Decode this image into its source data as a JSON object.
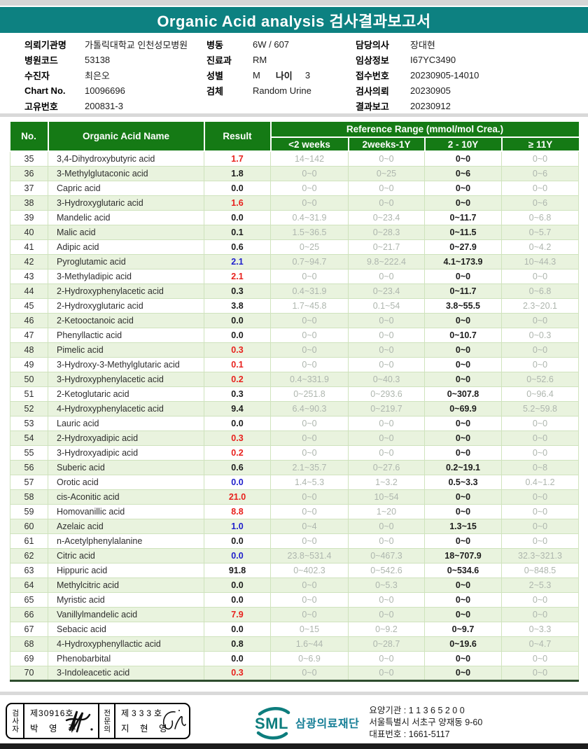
{
  "title": "Organic Acid analysis 검사결과보고서",
  "colors": {
    "banner_teal": "#0d8181",
    "table_header_green": "#157a15",
    "row_alt_green": "#e9f3de",
    "result_red": "#e8211d",
    "result_blue": "#2020cc",
    "range_gray": "#aeb6ae",
    "logo_teal": "#0d7d7d"
  },
  "info": {
    "left": [
      {
        "label": "의뢰기관명",
        "value": "가톨릭대학교 인천성모병원"
      },
      {
        "label": "병원코드",
        "value": "53138"
      },
      {
        "label": "수진자",
        "value": "최은오"
      },
      {
        "label": "Chart No.",
        "value": "10096696"
      },
      {
        "label": "고유번호",
        "value": "200831-3"
      }
    ],
    "middle": [
      {
        "label": "병동",
        "value": "6W / 607"
      },
      {
        "label": "진료과",
        "value": "RM"
      },
      {
        "label": "성별",
        "value": "M",
        "label2": "나이",
        "value2": "3"
      },
      {
        "label": "검체",
        "value": "Random Urine"
      }
    ],
    "right": [
      {
        "label": "담당의사",
        "value": "장대현"
      },
      {
        "label": "임상정보",
        "value": "I67YC3490"
      },
      {
        "label": "접수번호",
        "value": "20230905-14010"
      },
      {
        "label": "검사의뢰",
        "value": "20230905"
      },
      {
        "label": "결과보고",
        "value": "20230912"
      }
    ]
  },
  "table": {
    "col_no": "No.",
    "col_name": "Organic Acid Name",
    "col_result": "Result",
    "ref_title": "Reference Range (mmol/mol Crea.)",
    "ref_cols": [
      "<2 weeks",
      "2weeks-1Y",
      "2 - 10Y",
      "≥ 11Y"
    ],
    "rows": [
      {
        "no": "35",
        "name": "3,4-Dihydroxybutyric acid",
        "result": "1.7",
        "color": "red",
        "ranges": [
          "14~142",
          "0~0",
          "0~0",
          "0~0"
        ]
      },
      {
        "no": "36",
        "name": "3-Methylglutaconic acid",
        "result": "1.8",
        "color": "black",
        "ranges": [
          "0~0",
          "0~25",
          "0~6",
          "0~6"
        ]
      },
      {
        "no": "37",
        "name": "Capric acid",
        "result": "0.0",
        "color": "black",
        "ranges": [
          "0~0",
          "0~0",
          "0~0",
          "0~0"
        ]
      },
      {
        "no": "38",
        "name": "3-Hydroxyglutaric acid",
        "result": "1.6",
        "color": "red",
        "ranges": [
          "0~0",
          "0~0",
          "0~0",
          "0~6"
        ]
      },
      {
        "no": "39",
        "name": "Mandelic acid",
        "result": "0.0",
        "color": "black",
        "ranges": [
          "0.4~31.9",
          "0~23.4",
          "0~11.7",
          "0~6.8"
        ]
      },
      {
        "no": "40",
        "name": "Malic acid",
        "result": "0.1",
        "color": "black",
        "ranges": [
          "1.5~36.5",
          "0~28.3",
          "0~11.5",
          "0~5.7"
        ]
      },
      {
        "no": "41",
        "name": "Adipic acid",
        "result": "0.6",
        "color": "black",
        "ranges": [
          "0~25",
          "0~21.7",
          "0~27.9",
          "0~4.2"
        ]
      },
      {
        "no": "42",
        "name": "Pyroglutamic acid",
        "result": "2.1",
        "color": "blue",
        "ranges": [
          "0.7~94.7",
          "9.8~222.4",
          "4.1~173.9",
          "10~44.3"
        ]
      },
      {
        "no": "43",
        "name": "3-Methyladipic acid",
        "result": "2.1",
        "color": "red",
        "ranges": [
          "0~0",
          "0~0",
          "0~0",
          "0~0"
        ]
      },
      {
        "no": "44",
        "name": "2-Hydroxyphenylacetic acid",
        "result": "0.3",
        "color": "black",
        "ranges": [
          "0.4~31.9",
          "0~23.4",
          "0~11.7",
          "0~6.8"
        ]
      },
      {
        "no": "45",
        "name": "2-Hydroxyglutaric acid",
        "result": "3.8",
        "color": "black",
        "ranges": [
          "1.7~45.8",
          "0.1~54",
          "3.8~55.5",
          "2.3~20.1"
        ]
      },
      {
        "no": "46",
        "name": "2-Ketooctanoic acid",
        "result": "0.0",
        "color": "black",
        "ranges": [
          "0~0",
          "0~0",
          "0~0",
          "0~0"
        ]
      },
      {
        "no": "47",
        "name": "Phenyllactic acid",
        "result": "0.0",
        "color": "black",
        "ranges": [
          "0~0",
          "0~0",
          "0~10.7",
          "0~0.3"
        ]
      },
      {
        "no": "48",
        "name": "Pimelic acid",
        "result": "0.3",
        "color": "red",
        "ranges": [
          "0~0",
          "0~0",
          "0~0",
          "0~0"
        ]
      },
      {
        "no": "49",
        "name": "3-Hydroxy-3-Methylglutaric acid",
        "result": "0.1",
        "color": "red",
        "ranges": [
          "0~0",
          "0~0",
          "0~0",
          "0~0"
        ]
      },
      {
        "no": "50",
        "name": "3-Hydroxyphenylacetic acid",
        "result": "0.2",
        "color": "red",
        "ranges": [
          "0.4~331.9",
          "0~40.3",
          "0~0",
          "0~52.6"
        ]
      },
      {
        "no": "51",
        "name": "2-Ketoglutaric acid",
        "result": "0.3",
        "color": "black",
        "ranges": [
          "0~251.8",
          "0~293.6",
          "0~307.8",
          "0~96.4"
        ]
      },
      {
        "no": "52",
        "name": "4-Hydroxyphenylacetic acid",
        "result": "9.4",
        "color": "black",
        "ranges": [
          "6.4~90.3",
          "0~219.7",
          "0~69.9",
          "5.2~59.8"
        ]
      },
      {
        "no": "53",
        "name": "Lauric acid",
        "result": "0.0",
        "color": "black",
        "ranges": [
          "0~0",
          "0~0",
          "0~0",
          "0~0"
        ]
      },
      {
        "no": "54",
        "name": "2-Hydroxyadipic acid",
        "result": "0.3",
        "color": "red",
        "ranges": [
          "0~0",
          "0~0",
          "0~0",
          "0~0"
        ]
      },
      {
        "no": "55",
        "name": "3-Hydroxyadipic acid",
        "result": "0.2",
        "color": "red",
        "ranges": [
          "0~0",
          "0~0",
          "0~0",
          "0~0"
        ]
      },
      {
        "no": "56",
        "name": "Suberic acid",
        "result": "0.6",
        "color": "black",
        "ranges": [
          "2.1~35.7",
          "0~27.6",
          "0.2~19.1",
          "0~8"
        ]
      },
      {
        "no": "57",
        "name": "Orotic acid",
        "result": "0.0",
        "color": "blue",
        "ranges": [
          "1.4~5.3",
          "1~3.2",
          "0.5~3.3",
          "0.4~1.2"
        ]
      },
      {
        "no": "58",
        "name": "cis-Aconitic acid",
        "result": "21.0",
        "color": "red",
        "ranges": [
          "0~0",
          "10~54",
          "0~0",
          "0~0"
        ]
      },
      {
        "no": "59",
        "name": "Homovanillic acid",
        "result": "8.8",
        "color": "red",
        "ranges": [
          "0~0",
          "1~20",
          "0~0",
          "0~0"
        ]
      },
      {
        "no": "60",
        "name": "Azelaic acid",
        "result": "1.0",
        "color": "blue",
        "ranges": [
          "0~4",
          "0~0",
          "1.3~15",
          "0~0"
        ]
      },
      {
        "no": "61",
        "name": "n-Acetylphenylalanine",
        "result": "0.0",
        "color": "black",
        "ranges": [
          "0~0",
          "0~0",
          "0~0",
          "0~0"
        ]
      },
      {
        "no": "62",
        "name": "Citric acid",
        "result": "0.0",
        "color": "blue",
        "ranges": [
          "23.8~531.4",
          "0~467.3",
          "18~707.9",
          "32.3~321.3"
        ]
      },
      {
        "no": "63",
        "name": "Hippuric acid",
        "result": "91.8",
        "color": "black",
        "ranges": [
          "0~402.3",
          "0~542.6",
          "0~534.6",
          "0~848.5"
        ]
      },
      {
        "no": "64",
        "name": "Methylcitric acid",
        "result": "0.0",
        "color": "black",
        "ranges": [
          "0~0",
          "0~5.3",
          "0~0",
          "2~5.3"
        ]
      },
      {
        "no": "65",
        "name": "Myristic acid",
        "result": "0.0",
        "color": "black",
        "ranges": [
          "0~0",
          "0~0",
          "0~0",
          "0~0"
        ]
      },
      {
        "no": "66",
        "name": "Vanillylmandelic acid",
        "result": "7.9",
        "color": "red",
        "ranges": [
          "0~0",
          "0~0",
          "0~0",
          "0~0"
        ]
      },
      {
        "no": "67",
        "name": "Sebacic acid",
        "result": "0.0",
        "color": "black",
        "ranges": [
          "0~15",
          "0~9.2",
          "0~9.7",
          "0~3.3"
        ]
      },
      {
        "no": "68",
        "name": "4-Hydroxyphenyllactic acid",
        "result": "0.8",
        "color": "black",
        "ranges": [
          "1.6~44",
          "0~28.7",
          "0~19.6",
          "0~4.7"
        ]
      },
      {
        "no": "69",
        "name": "Phenobarbital",
        "result": "0.0",
        "color": "black",
        "ranges": [
          "0~6.9",
          "0~0",
          "0~0",
          "0~0"
        ]
      },
      {
        "no": "70",
        "name": "3-Indoleacetic acid",
        "result": "0.3",
        "color": "red",
        "ranges": [
          "0~0",
          "0~0",
          "0~0",
          "0~0"
        ]
      }
    ]
  },
  "footer": {
    "examiner_title": "검사자",
    "examiner_cert": "제30916호",
    "examiner_name": "박 영 주",
    "specialist_title": "전문의",
    "specialist_cert": "제333호",
    "specialist_name": "지 현 영",
    "org_logo": "SML",
    "org_name": "삼광의료재단",
    "addr_line1": "요양기관 : 1 1 3 6 5 2 0 0",
    "addr_line2": "서울특별시 서초구 양재동 9-60",
    "addr_line3": "대표번호 : 1661-5117"
  }
}
